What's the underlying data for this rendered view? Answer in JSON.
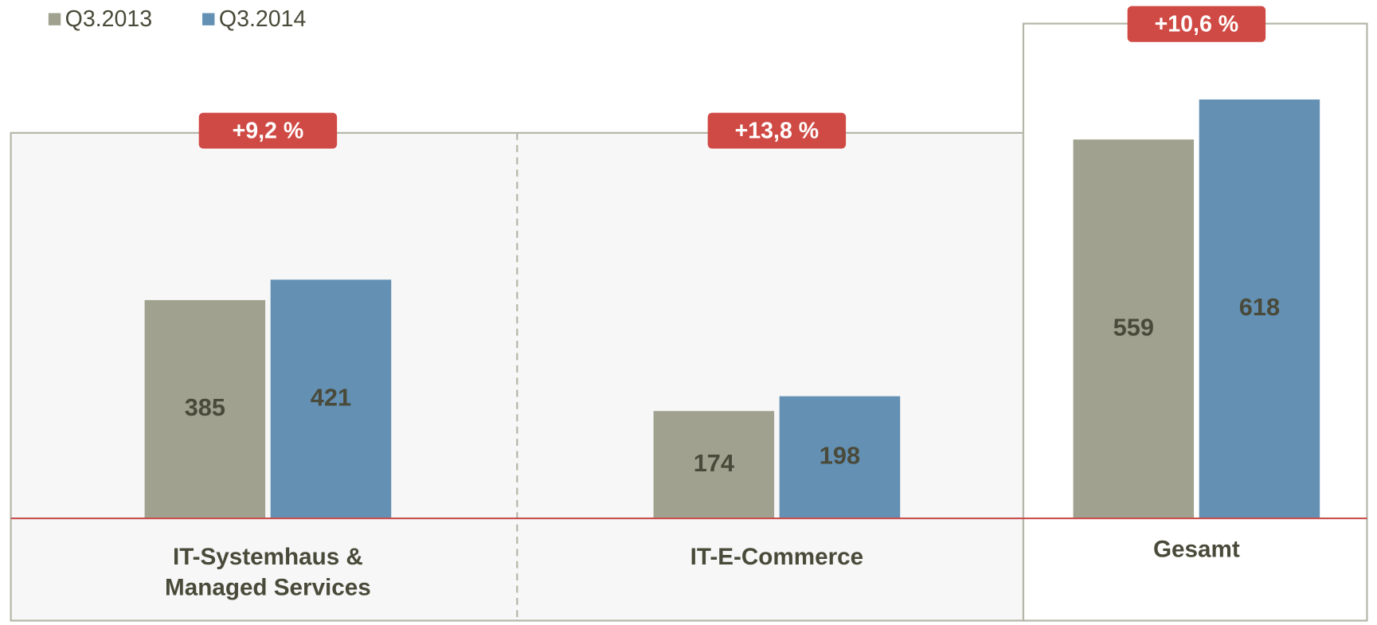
{
  "chart_data": {
    "type": "bar",
    "categories": [
      "IT-Systemhaus &\nManaged Services",
      "IT-E-Commerce",
      "Gesamt"
    ],
    "series": [
      {
        "name": "Q3.2013",
        "color": "#a0a28f",
        "values": [
          385,
          174,
          559
        ]
      },
      {
        "name": "Q3.2014",
        "color": "#6390b3",
        "values": [
          421,
          198,
          618
        ]
      }
    ],
    "annotations": [
      "+9,2 %",
      "+13,8 %",
      "+10,6 %"
    ],
    "ylims": [
      [
        0,
        680
      ],
      [
        0,
        625
      ],
      [
        0,
        730
      ]
    ]
  }
}
